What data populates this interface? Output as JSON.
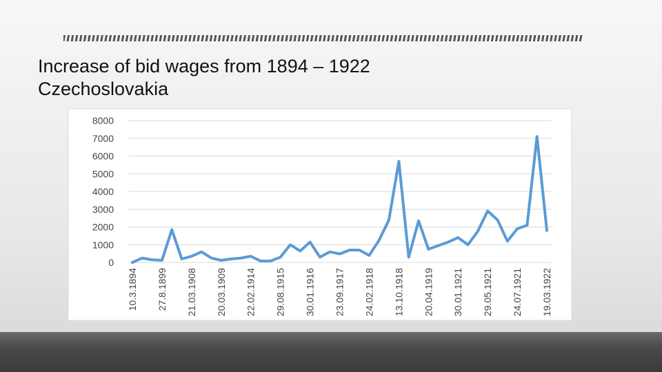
{
  "slide": {
    "title": [
      "Increase of bid wages from 1894 – 1922",
      "Czechoslovakia"
    ]
  },
  "chart_data": {
    "type": "line",
    "categories": [
      "10.3.1894",
      null,
      null,
      "27.8.1899",
      null,
      null,
      "21.03.1908",
      null,
      null,
      "20.03.1909",
      null,
      null,
      "22.02.1914",
      null,
      null,
      "29.08.1915",
      null,
      null,
      "30.01.1916",
      null,
      null,
      "23.09.1917",
      null,
      null,
      "24.02.1918",
      null,
      null,
      "13.10.1918",
      null,
      null,
      "20.04.1919",
      null,
      null,
      "30.01.1921",
      null,
      null,
      "29.05.1921",
      null,
      null,
      "24.07.1921",
      null,
      null,
      "19.03.1922"
    ],
    "series": [
      {
        "color": "#5b9bd5",
        "values": [
          0,
          250,
          150,
          120,
          1850,
          200,
          350,
          600,
          250,
          120,
          200,
          250,
          350,
          80,
          80,
          300,
          1000,
          650,
          1150,
          300,
          600,
          480,
          700,
          700,
          400,
          1250,
          2400,
          5700,
          300,
          2350,
          750,
          950,
          1150,
          1400,
          1000,
          1750,
          2900,
          2400,
          1200,
          1900,
          2100,
          7100,
          1800
        ]
      }
    ],
    "ylim": [
      0,
      8000
    ],
    "yticks": [
      0,
      1000,
      2000,
      3000,
      4000,
      5000,
      6000,
      7000,
      8000
    ],
    "grid": true
  }
}
